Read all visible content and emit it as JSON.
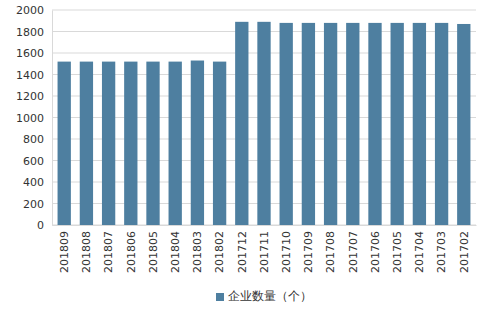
{
  "chart_data": {
    "type": "bar",
    "categories": [
      "201809",
      "201808",
      "201807",
      "201806",
      "201805",
      "201804",
      "201803",
      "201802",
      "201712",
      "201711",
      "201710",
      "201709",
      "201708",
      "201707",
      "201706",
      "201705",
      "201704",
      "201703",
      "201702"
    ],
    "series": [
      {
        "name": "企业数量（个）",
        "color": "#4e7fa0",
        "values": [
          1520,
          1520,
          1520,
          1520,
          1520,
          1520,
          1530,
          1520,
          1890,
          1890,
          1880,
          1880,
          1880,
          1880,
          1880,
          1880,
          1880,
          1880,
          1870
        ]
      }
    ],
    "ylim": [
      0,
      2000
    ],
    "yticks": [
      0,
      200,
      400,
      600,
      800,
      1000,
      1200,
      1400,
      1600,
      1800,
      2000
    ],
    "grid": true,
    "legend": "bottom"
  }
}
